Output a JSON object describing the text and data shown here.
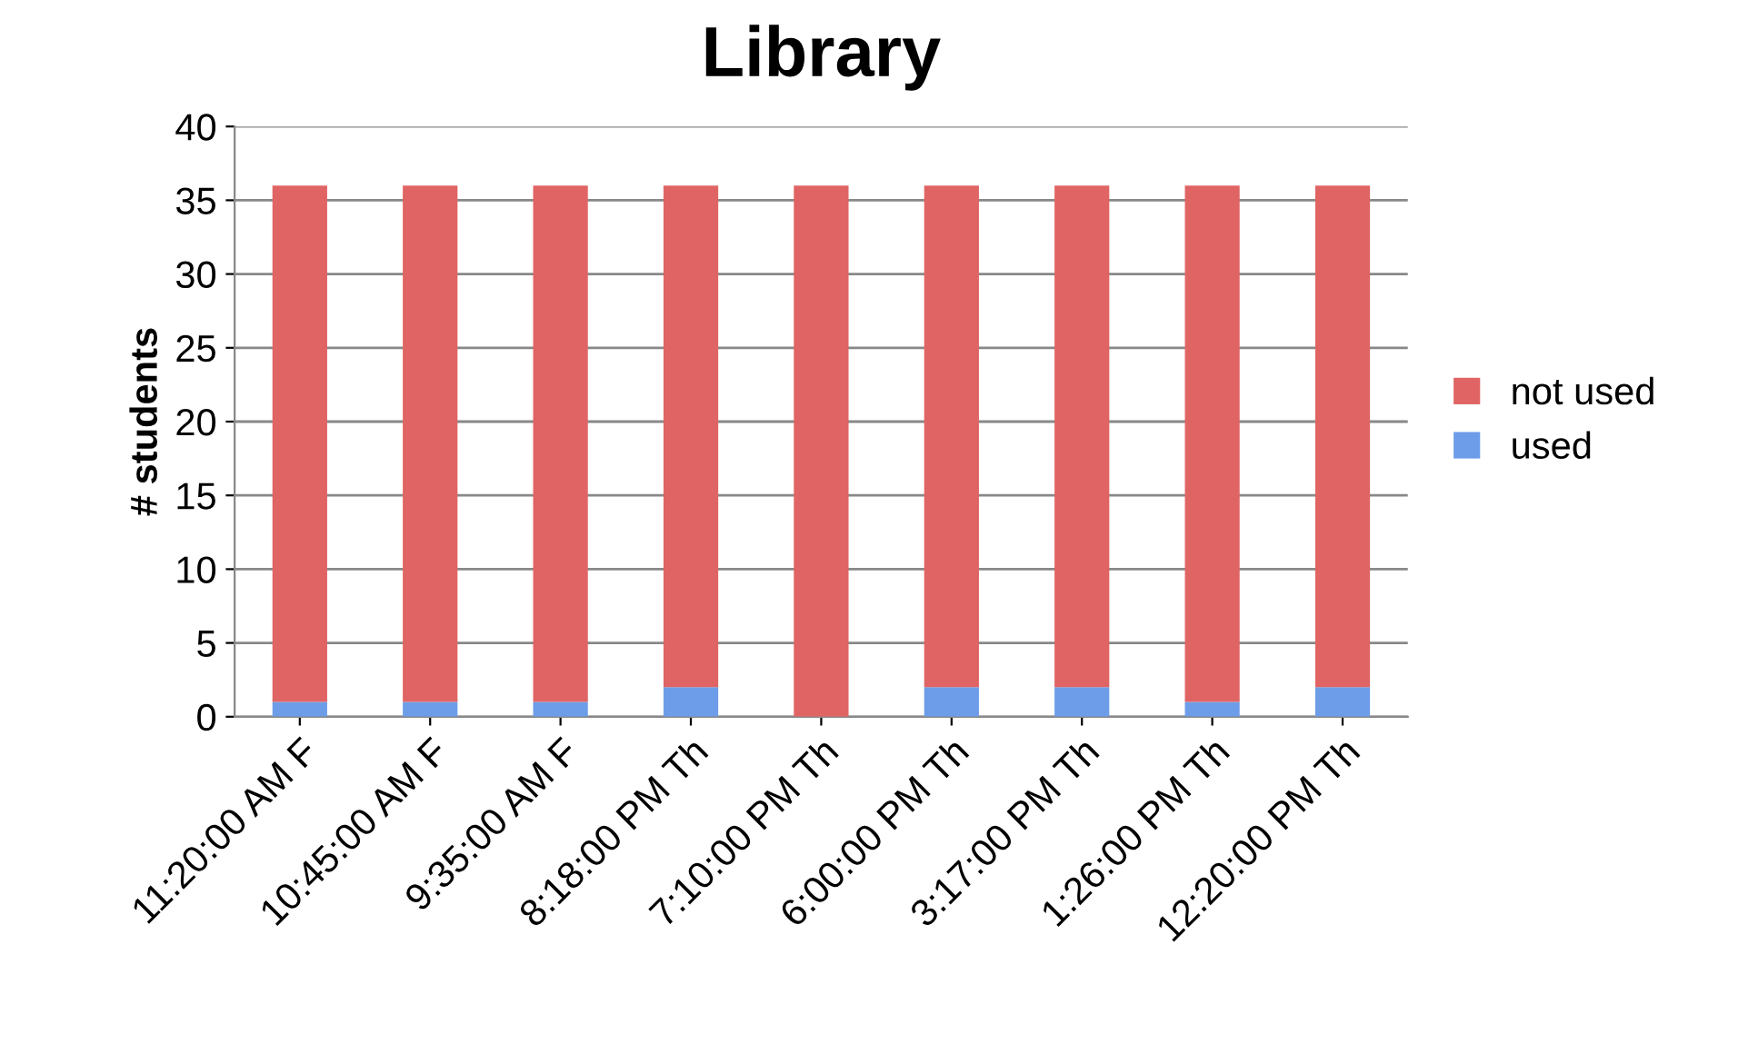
{
  "chart_data": {
    "type": "bar",
    "title": "Library",
    "ylabel": "# students",
    "categories": [
      "11:20:00 AM F",
      "10:45:00 AM F",
      "9:35:00 AM F",
      "8:18:00 PM Th",
      "7:10:00 PM Th",
      "6:00:00 PM Th",
      "3:17:00 PM Th",
      "1:26:00 PM Th",
      "12:20:00 PM Th"
    ],
    "series": [
      {
        "name": "used",
        "color": "#6d9de8",
        "values": [
          1,
          1,
          1,
          2,
          0,
          2,
          2,
          1,
          2
        ]
      },
      {
        "name": "not used",
        "color": "#e06464",
        "values": [
          35,
          35,
          35,
          34,
          36,
          34,
          34,
          35,
          34
        ]
      }
    ],
    "stacked": true,
    "ylim": [
      0,
      40
    ],
    "yticks": [
      0,
      5,
      10,
      15,
      20,
      25,
      30,
      35,
      40
    ],
    "grid": "y",
    "legend": "right"
  }
}
